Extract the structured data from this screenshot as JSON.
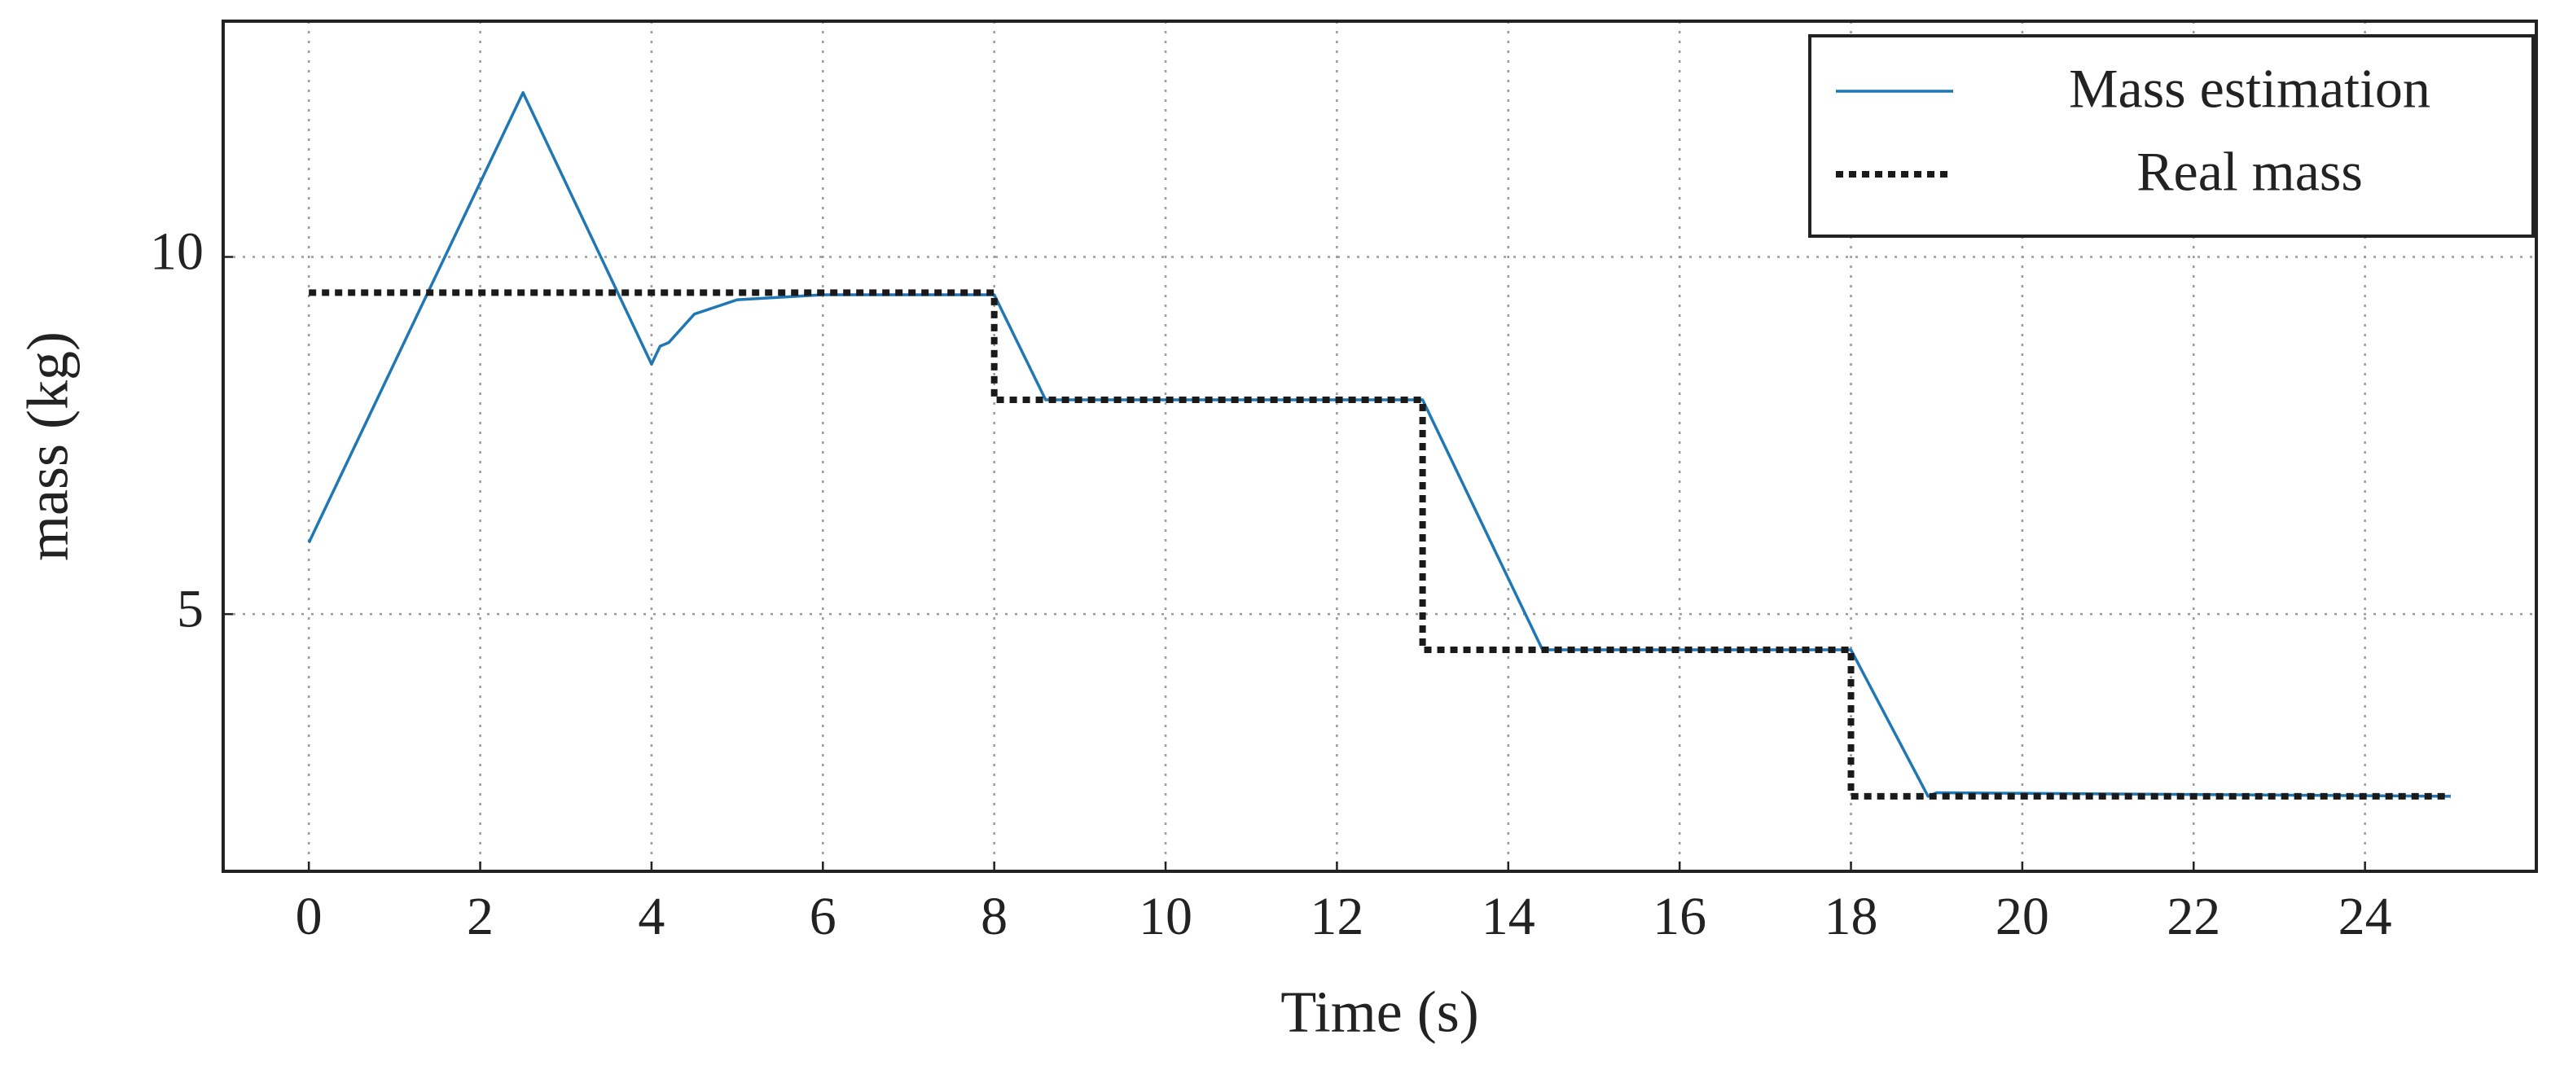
{
  "chart_data": {
    "type": "line",
    "xlabel": "Time (s)",
    "ylabel": "mass (kg)",
    "xlim": [
      -1,
      26
    ],
    "ylim": [
      1.4,
      13.3
    ],
    "xticks": [
      0,
      2,
      4,
      6,
      8,
      10,
      12,
      14,
      16,
      18,
      20,
      22,
      24
    ],
    "yticks": [
      5,
      10
    ],
    "grid": true,
    "legend": "upper right",
    "series": [
      {
        "name": "Mass estimation",
        "color": "#1f77b4",
        "linestyle": "solid",
        "x": [
          0,
          2.5,
          4.0,
          4.1,
          4.2,
          4.5,
          5,
          6,
          8,
          8.6,
          13,
          14.4,
          18,
          18.9,
          19.0,
          25
        ],
        "values": [
          6.0,
          12.3,
          8.5,
          8.75,
          8.8,
          9.2,
          9.4,
          9.47,
          9.47,
          8.0,
          8.0,
          4.5,
          4.5,
          2.45,
          2.5,
          2.45
        ]
      },
      {
        "name": "Real mass",
        "color": "#1a1a1a",
        "linestyle": "dotted",
        "x": [
          0,
          8,
          8,
          13,
          13,
          18,
          18,
          25
        ],
        "values": [
          9.5,
          9.5,
          8.0,
          8.0,
          4.5,
          4.5,
          2.45,
          2.45
        ]
      }
    ]
  }
}
